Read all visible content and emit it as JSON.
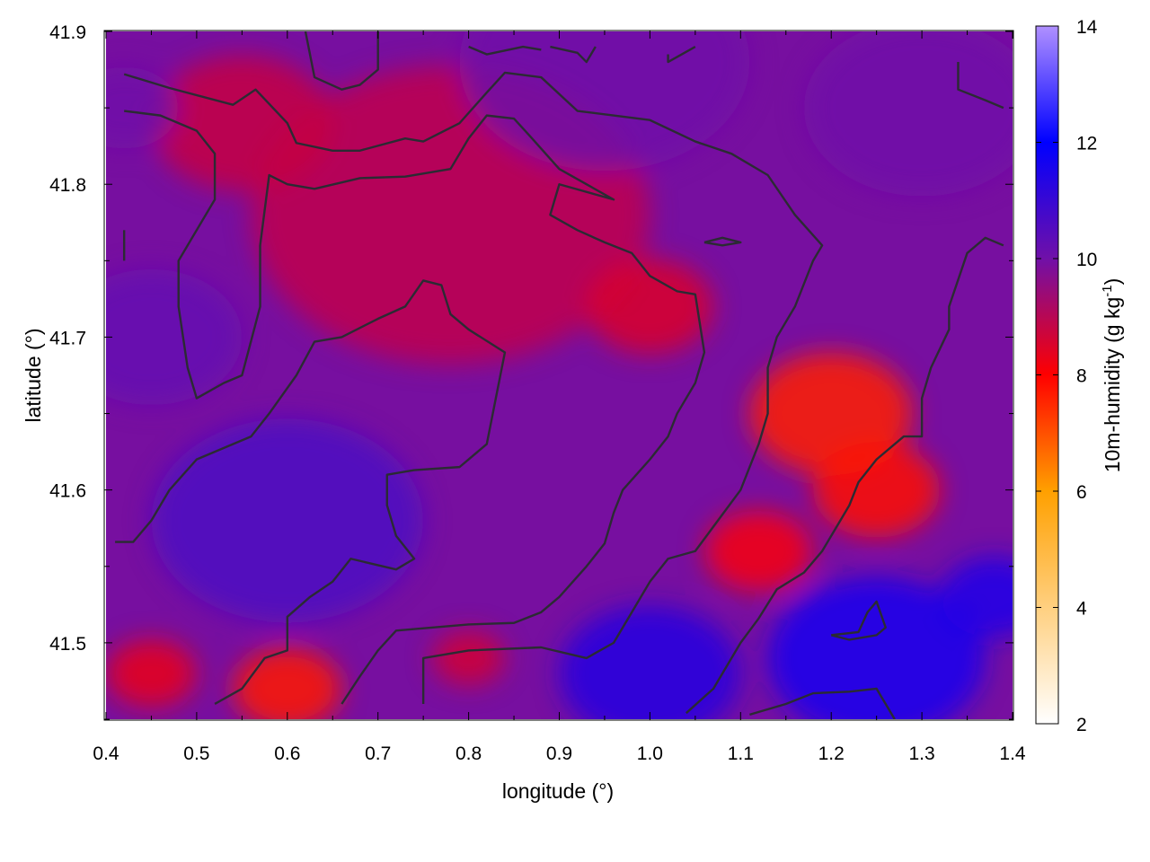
{
  "chart_data": {
    "type": "heatmap",
    "title": "",
    "xlabel": "longitude (°)",
    "ylabel": "latitude (°)",
    "xlim": [
      0.4,
      1.4
    ],
    "ylim": [
      41.45,
      41.9
    ],
    "x_ticks": [
      0.4,
      0.5,
      0.6,
      0.7,
      0.8,
      0.9,
      1.0,
      1.1,
      1.2,
      1.3,
      1.4
    ],
    "y_ticks": [
      41.5,
      41.6,
      41.7,
      41.8,
      41.9
    ],
    "x_tick_labels": [
      "0.4",
      "0.5",
      "0.6",
      "0.7",
      "0.8",
      "0.9",
      "1.0",
      "1.1",
      "1.2",
      "1.3",
      "1.4"
    ],
    "y_tick_labels": [
      "41.5",
      "41.6",
      "41.7",
      "41.8",
      "41.9"
    ],
    "colorbar": {
      "label_main": "10m-humidity (g kg",
      "label_sup": "-1",
      "label_end": ")",
      "range": [
        2,
        14
      ],
      "ticks": [
        2,
        4,
        6,
        8,
        10,
        12,
        14
      ],
      "tick_labels": [
        "2",
        "4",
        "6",
        "8",
        "10",
        "12",
        "14"
      ],
      "colors": [
        {
          "value": 2,
          "color": "#ffffff"
        },
        {
          "value": 6,
          "color": "#ffa000"
        },
        {
          "value": 8,
          "color": "#ff0000"
        },
        {
          "value": 10,
          "color": "#7010a8"
        },
        {
          "value": 12,
          "color": "#0000ff"
        },
        {
          "value": 14,
          "color": "#b090ff"
        }
      ]
    },
    "field_blobs": [
      {
        "lon": 0.78,
        "lat": 41.78,
        "value": 8.9,
        "spread": 0.22
      },
      {
        "lon": 0.55,
        "lat": 41.84,
        "value": 8.8,
        "spread": 0.1
      },
      {
        "lon": 1.2,
        "lat": 41.65,
        "value": 7.6,
        "spread": 0.09
      },
      {
        "lon": 1.25,
        "lat": 41.6,
        "value": 7.8,
        "spread": 0.07
      },
      {
        "lon": 1.12,
        "lat": 41.56,
        "value": 8.1,
        "spread": 0.06
      },
      {
        "lon": 0.6,
        "lat": 41.47,
        "value": 7.7,
        "spread": 0.06
      },
      {
        "lon": 0.45,
        "lat": 41.48,
        "value": 8.3,
        "spread": 0.05
      },
      {
        "lon": 1.0,
        "lat": 41.72,
        "value": 8.5,
        "spread": 0.07
      },
      {
        "lon": 0.8,
        "lat": 41.49,
        "value": 8.6,
        "spread": 0.04
      },
      {
        "lon": 0.6,
        "lat": 41.58,
        "value": 10.6,
        "spread": 0.15
      },
      {
        "lon": 0.45,
        "lat": 41.7,
        "value": 10.2,
        "spread": 0.1
      },
      {
        "lon": 1.25,
        "lat": 41.49,
        "value": 11.6,
        "spread": 0.12
      },
      {
        "lon": 1.0,
        "lat": 41.48,
        "value": 11.3,
        "spread": 0.1
      },
      {
        "lon": 1.38,
        "lat": 41.53,
        "value": 11.5,
        "spread": 0.06
      },
      {
        "lon": 0.95,
        "lat": 41.88,
        "value": 10.0,
        "spread": 0.16
      },
      {
        "lon": 1.3,
        "lat": 41.85,
        "value": 10.0,
        "spread": 0.13
      },
      {
        "lon": 0.42,
        "lat": 41.85,
        "value": 10.0,
        "spread": 0.06
      }
    ],
    "contours": [
      [
        [
          0.42,
          41.872
        ],
        [
          0.47,
          41.863
        ],
        [
          0.54,
          41.852
        ],
        [
          0.565,
          41.862
        ],
        [
          0.6,
          41.84
        ],
        [
          0.61,
          41.827
        ],
        [
          0.65,
          41.822
        ],
        [
          0.68,
          41.822
        ],
        [
          0.73,
          41.83
        ],
        [
          0.75,
          41.828
        ],
        [
          0.79,
          41.84
        ],
        [
          0.82,
          41.86
        ],
        [
          0.84,
          41.873
        ],
        [
          0.88,
          41.87
        ],
        [
          0.92,
          41.848
        ],
        [
          1.0,
          41.842
        ],
        [
          1.05,
          41.828
        ],
        [
          1.09,
          41.82
        ],
        [
          1.13,
          41.806
        ],
        [
          1.16,
          41.78
        ],
        [
          1.19,
          41.76
        ],
        [
          1.18,
          41.75
        ],
        [
          1.16,
          41.72
        ],
        [
          1.14,
          41.7
        ],
        [
          1.13,
          41.68
        ],
        [
          1.13,
          41.65
        ],
        [
          1.12,
          41.63
        ],
        [
          1.1,
          41.6
        ],
        [
          1.07,
          41.576
        ],
        [
          1.05,
          41.56
        ],
        [
          1.02,
          41.555
        ],
        [
          1.0,
          41.54
        ],
        [
          0.98,
          41.52
        ],
        [
          0.96,
          41.5
        ],
        [
          0.93,
          41.49
        ],
        [
          0.88,
          41.497
        ],
        [
          0.8,
          41.495
        ],
        [
          0.75,
          41.49
        ],
        [
          0.75,
          41.46
        ]
      ],
      [
        [
          0.42,
          41.848
        ],
        [
          0.46,
          41.845
        ],
        [
          0.5,
          41.835
        ],
        [
          0.52,
          41.82
        ],
        [
          0.52,
          41.79
        ],
        [
          0.5,
          41.77
        ],
        [
          0.48,
          41.75
        ],
        [
          0.48,
          41.72
        ],
        [
          0.49,
          41.68
        ],
        [
          0.5,
          41.66
        ],
        [
          0.53,
          41.67
        ],
        [
          0.55,
          41.675
        ],
        [
          0.57,
          41.72
        ],
        [
          0.57,
          41.76
        ],
        [
          0.58,
          41.806
        ],
        [
          0.6,
          41.8
        ],
        [
          0.63,
          41.797
        ],
        [
          0.68,
          41.804
        ],
        [
          0.73,
          41.805
        ],
        [
          0.78,
          41.81
        ],
        [
          0.8,
          41.83
        ],
        [
          0.82,
          41.845
        ],
        [
          0.85,
          41.843
        ],
        [
          0.87,
          41.83
        ],
        [
          0.9,
          41.81
        ],
        [
          0.93,
          41.8
        ],
        [
          0.96,
          41.79
        ],
        [
          0.9,
          41.8
        ],
        [
          0.89,
          41.78
        ],
        [
          0.92,
          41.77
        ],
        [
          0.95,
          41.762
        ],
        [
          0.98,
          41.755
        ],
        [
          1.0,
          41.74
        ],
        [
          1.03,
          41.73
        ],
        [
          1.05,
          41.728
        ],
        [
          1.06,
          41.69
        ],
        [
          1.05,
          41.67
        ],
        [
          1.03,
          41.65
        ],
        [
          1.02,
          41.635
        ],
        [
          1.0,
          41.62
        ],
        [
          0.97,
          41.6
        ],
        [
          0.96,
          41.585
        ],
        [
          0.95,
          41.565
        ],
        [
          0.93,
          41.55
        ],
        [
          0.9,
          41.53
        ],
        [
          0.88,
          41.52
        ],
        [
          0.85,
          41.513
        ],
        [
          0.8,
          41.512
        ],
        [
          0.72,
          41.508
        ],
        [
          0.7,
          41.495
        ],
        [
          0.68,
          41.478
        ],
        [
          0.66,
          41.46
        ]
      ],
      [
        [
          0.52,
          41.46
        ],
        [
          0.55,
          41.47
        ],
        [
          0.575,
          41.49
        ],
        [
          0.6,
          41.495
        ],
        [
          0.6,
          41.517
        ],
        [
          0.625,
          41.53
        ],
        [
          0.65,
          41.54
        ],
        [
          0.67,
          41.555
        ],
        [
          0.72,
          41.548
        ],
        [
          0.74,
          41.555
        ],
        [
          0.72,
          41.57
        ],
        [
          0.71,
          41.59
        ],
        [
          0.71,
          41.61
        ],
        [
          0.74,
          41.613
        ],
        [
          0.79,
          41.615
        ],
        [
          0.82,
          41.63
        ],
        [
          0.83,
          41.66
        ],
        [
          0.84,
          41.69
        ],
        [
          0.8,
          41.705
        ],
        [
          0.78,
          41.715
        ],
        [
          0.77,
          41.734
        ],
        [
          0.75,
          41.737
        ],
        [
          0.73,
          41.72
        ],
        [
          0.7,
          41.712
        ],
        [
          0.66,
          41.7
        ],
        [
          0.63,
          41.697
        ],
        [
          0.61,
          41.675
        ],
        [
          0.58,
          41.65
        ],
        [
          0.56,
          41.635
        ],
        [
          0.52,
          41.625
        ],
        [
          0.5,
          41.62
        ],
        [
          0.47,
          41.6
        ],
        [
          0.45,
          41.58
        ],
        [
          0.43,
          41.566
        ],
        [
          0.41,
          41.566
        ]
      ],
      [
        [
          0.62,
          41.9
        ],
        [
          0.63,
          41.87
        ],
        [
          0.66,
          41.862
        ],
        [
          0.68,
          41.865
        ],
        [
          0.7,
          41.875
        ],
        [
          0.7,
          41.9
        ]
      ],
      [
        [
          0.8,
          41.89
        ],
        [
          0.82,
          41.885
        ],
        [
          0.86,
          41.89
        ],
        [
          0.88,
          41.888
        ]
      ],
      [
        [
          0.89,
          41.89
        ],
        [
          0.92,
          41.886
        ],
        [
          0.93,
          41.88
        ],
        [
          0.94,
          41.89
        ]
      ],
      [
        [
          1.02,
          41.885
        ],
        [
          1.02,
          41.88
        ],
        [
          1.05,
          41.89
        ]
      ],
      [
        [
          1.34,
          41.88
        ],
        [
          1.34,
          41.862
        ],
        [
          1.37,
          41.855
        ],
        [
          1.39,
          41.85
        ]
      ],
      [
        [
          1.39,
          41.76
        ],
        [
          1.37,
          41.765
        ],
        [
          1.35,
          41.755
        ],
        [
          1.33,
          41.72
        ],
        [
          1.33,
          41.705
        ],
        [
          1.31,
          41.68
        ],
        [
          1.3,
          41.66
        ],
        [
          1.3,
          41.635
        ],
        [
          1.28,
          41.635
        ],
        [
          1.25,
          41.62
        ],
        [
          1.23,
          41.605
        ],
        [
          1.22,
          41.59
        ],
        [
          1.21,
          41.58
        ],
        [
          1.19,
          41.56
        ],
        [
          1.17,
          41.546
        ],
        [
          1.14,
          41.535
        ],
        [
          1.12,
          41.516
        ],
        [
          1.1,
          41.5
        ],
        [
          1.07,
          41.47
        ],
        [
          1.04,
          41.454
        ]
      ],
      [
        [
          1.06,
          41.762
        ],
        [
          1.08,
          41.765
        ],
        [
          1.1,
          41.762
        ],
        [
          1.08,
          41.76
        ],
        [
          1.06,
          41.762
        ]
      ],
      [
        [
          1.2,
          41.505
        ],
        [
          1.23,
          41.507
        ],
        [
          1.24,
          41.52
        ],
        [
          1.25,
          41.527
        ],
        [
          1.26,
          41.51
        ],
        [
          1.25,
          41.505
        ],
        [
          1.22,
          41.502
        ],
        [
          1.2,
          41.505
        ]
      ],
      [
        [
          1.11,
          41.453
        ],
        [
          1.15,
          41.46
        ],
        [
          1.18,
          41.467
        ],
        [
          1.22,
          41.468
        ],
        [
          1.25,
          41.47
        ],
        [
          1.27,
          41.45
        ]
      ],
      [
        [
          0.42,
          41.75
        ],
        [
          0.42,
          41.77
        ]
      ]
    ]
  }
}
